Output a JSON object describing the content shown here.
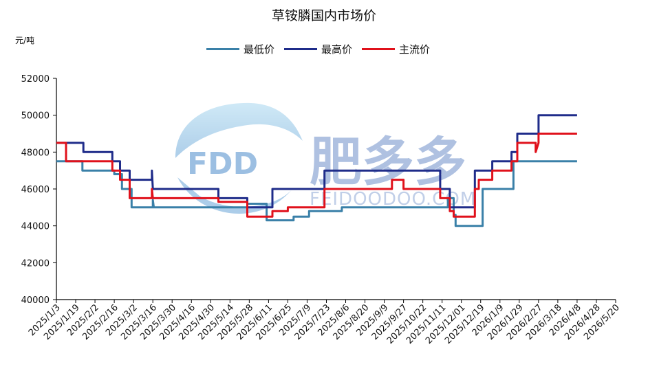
{
  "chart_data": {
    "type": "line",
    "title": "草铵膦国内市场价",
    "unit_label": "元/吨",
    "ylim": [
      40000,
      52000
    ],
    "y_ticks": [
      40000,
      42000,
      44000,
      46000,
      48000,
      50000,
      52000
    ],
    "x_labels": [
      "2025/1/3",
      "2025/1/19",
      "2025/2/2",
      "2025/2/16",
      "2025/3/2",
      "2025/3/16",
      "2025/3/30",
      "2025/4/16",
      "2025/4/30",
      "2025/5/14",
      "2025/5/28",
      "2025/6/11",
      "2025/6/25",
      "2025/7/9",
      "2025/7/23",
      "2025/8/6",
      "2025/8/20",
      "2025/9/9",
      "2025/9/27",
      "2025/10/22",
      "2025/11/11",
      "2025/12/01",
      "2025/12/19",
      "2026/1/9",
      "2026/1/29",
      "2026/2/27",
      "2026/3/18",
      "2026/4/8",
      "2026/4/28",
      "2026/5/20"
    ],
    "legend_position": "top",
    "grid": false,
    "series": [
      {
        "name": "最低价",
        "color": "#3a80a8",
        "points": [
          [
            0,
            47500
          ],
          [
            1.35,
            47500
          ],
          [
            1.35,
            47000
          ],
          [
            3,
            47000
          ],
          [
            3,
            46800
          ],
          [
            3.4,
            46800
          ],
          [
            3.4,
            46000
          ],
          [
            3.9,
            46000
          ],
          [
            3.9,
            45000
          ],
          [
            5,
            45000
          ],
          [
            5,
            45400
          ],
          [
            5.05,
            45000
          ],
          [
            9.9,
            45000
          ],
          [
            9.9,
            45200
          ],
          [
            10.9,
            45200
          ],
          [
            10.9,
            44300
          ],
          [
            12.3,
            44300
          ],
          [
            12.3,
            44500
          ],
          [
            13.1,
            44500
          ],
          [
            13.1,
            44800
          ],
          [
            14.8,
            44800
          ],
          [
            14.8,
            45000
          ],
          [
            20.3,
            45000
          ],
          [
            20.3,
            45500
          ],
          [
            20.6,
            45500
          ],
          [
            20.6,
            44600
          ],
          [
            20.7,
            44600
          ],
          [
            20.7,
            44000
          ],
          [
            22.1,
            44000
          ],
          [
            22.1,
            46000
          ],
          [
            23.7,
            46000
          ],
          [
            23.7,
            47500
          ],
          [
            27,
            47500
          ]
        ]
      },
      {
        "name": "最高价",
        "color": "#1f2c8a",
        "points": [
          [
            0,
            48500
          ],
          [
            1.4,
            48500
          ],
          [
            1.4,
            48000
          ],
          [
            2.9,
            48000
          ],
          [
            2.9,
            47500
          ],
          [
            3.3,
            47500
          ],
          [
            3.3,
            47000
          ],
          [
            3.8,
            47000
          ],
          [
            3.8,
            46500
          ],
          [
            4.95,
            46500
          ],
          [
            4.95,
            47000
          ],
          [
            5.0,
            46000
          ],
          [
            8.4,
            46000
          ],
          [
            8.4,
            45500
          ],
          [
            9.9,
            45500
          ],
          [
            9.9,
            45000
          ],
          [
            11.2,
            45000
          ],
          [
            11.2,
            46000
          ],
          [
            13.9,
            46000
          ],
          [
            13.9,
            47000
          ],
          [
            19.9,
            47000
          ],
          [
            19.9,
            46000
          ],
          [
            20.4,
            46000
          ],
          [
            20.4,
            45000
          ],
          [
            21.7,
            45000
          ],
          [
            21.7,
            47000
          ],
          [
            22.6,
            47000
          ],
          [
            22.6,
            47500
          ],
          [
            23.6,
            47500
          ],
          [
            23.6,
            48000
          ],
          [
            23.9,
            48000
          ],
          [
            23.9,
            49000
          ],
          [
            25.0,
            49000
          ],
          [
            25.0,
            50000
          ],
          [
            27,
            50000
          ]
        ]
      },
      {
        "name": "主流价",
        "color": "#e0111b",
        "points": [
          [
            0,
            48500
          ],
          [
            0.5,
            48500
          ],
          [
            0.5,
            47500
          ],
          [
            2.9,
            47500
          ],
          [
            2.9,
            47000
          ],
          [
            3.3,
            47000
          ],
          [
            3.3,
            46500
          ],
          [
            3.8,
            46500
          ],
          [
            3.8,
            45500
          ],
          [
            4.95,
            45500
          ],
          [
            4.95,
            46000
          ],
          [
            5.0,
            45500
          ],
          [
            8.4,
            45500
          ],
          [
            8.4,
            45300
          ],
          [
            9.9,
            45300
          ],
          [
            9.9,
            44500
          ],
          [
            11.2,
            44500
          ],
          [
            11.2,
            44800
          ],
          [
            12.0,
            44800
          ],
          [
            12.0,
            45000
          ],
          [
            13.9,
            45000
          ],
          [
            13.9,
            46000
          ],
          [
            17.4,
            46000
          ],
          [
            17.4,
            46500
          ],
          [
            18.0,
            46500
          ],
          [
            18.0,
            46000
          ],
          [
            19.9,
            46000
          ],
          [
            19.9,
            45500
          ],
          [
            20.4,
            45500
          ],
          [
            20.4,
            44800
          ],
          [
            20.6,
            44800
          ],
          [
            20.6,
            44500
          ],
          [
            21.7,
            44500
          ],
          [
            21.7,
            46000
          ],
          [
            21.9,
            46000
          ],
          [
            21.9,
            46500
          ],
          [
            22.6,
            46500
          ],
          [
            22.6,
            47000
          ],
          [
            23.6,
            47000
          ],
          [
            23.6,
            47500
          ],
          [
            23.9,
            47500
          ],
          [
            23.9,
            48500
          ],
          [
            24.85,
            48500
          ],
          [
            24.85,
            48000
          ],
          [
            25.0,
            48500
          ],
          [
            25.0,
            49000
          ],
          [
            27,
            49000
          ]
        ]
      }
    ]
  },
  "watermark": {
    "logo_text": "FDD",
    "brand_cn": "肥多多",
    "brand_en": "FEIDOODOO.COM"
  }
}
